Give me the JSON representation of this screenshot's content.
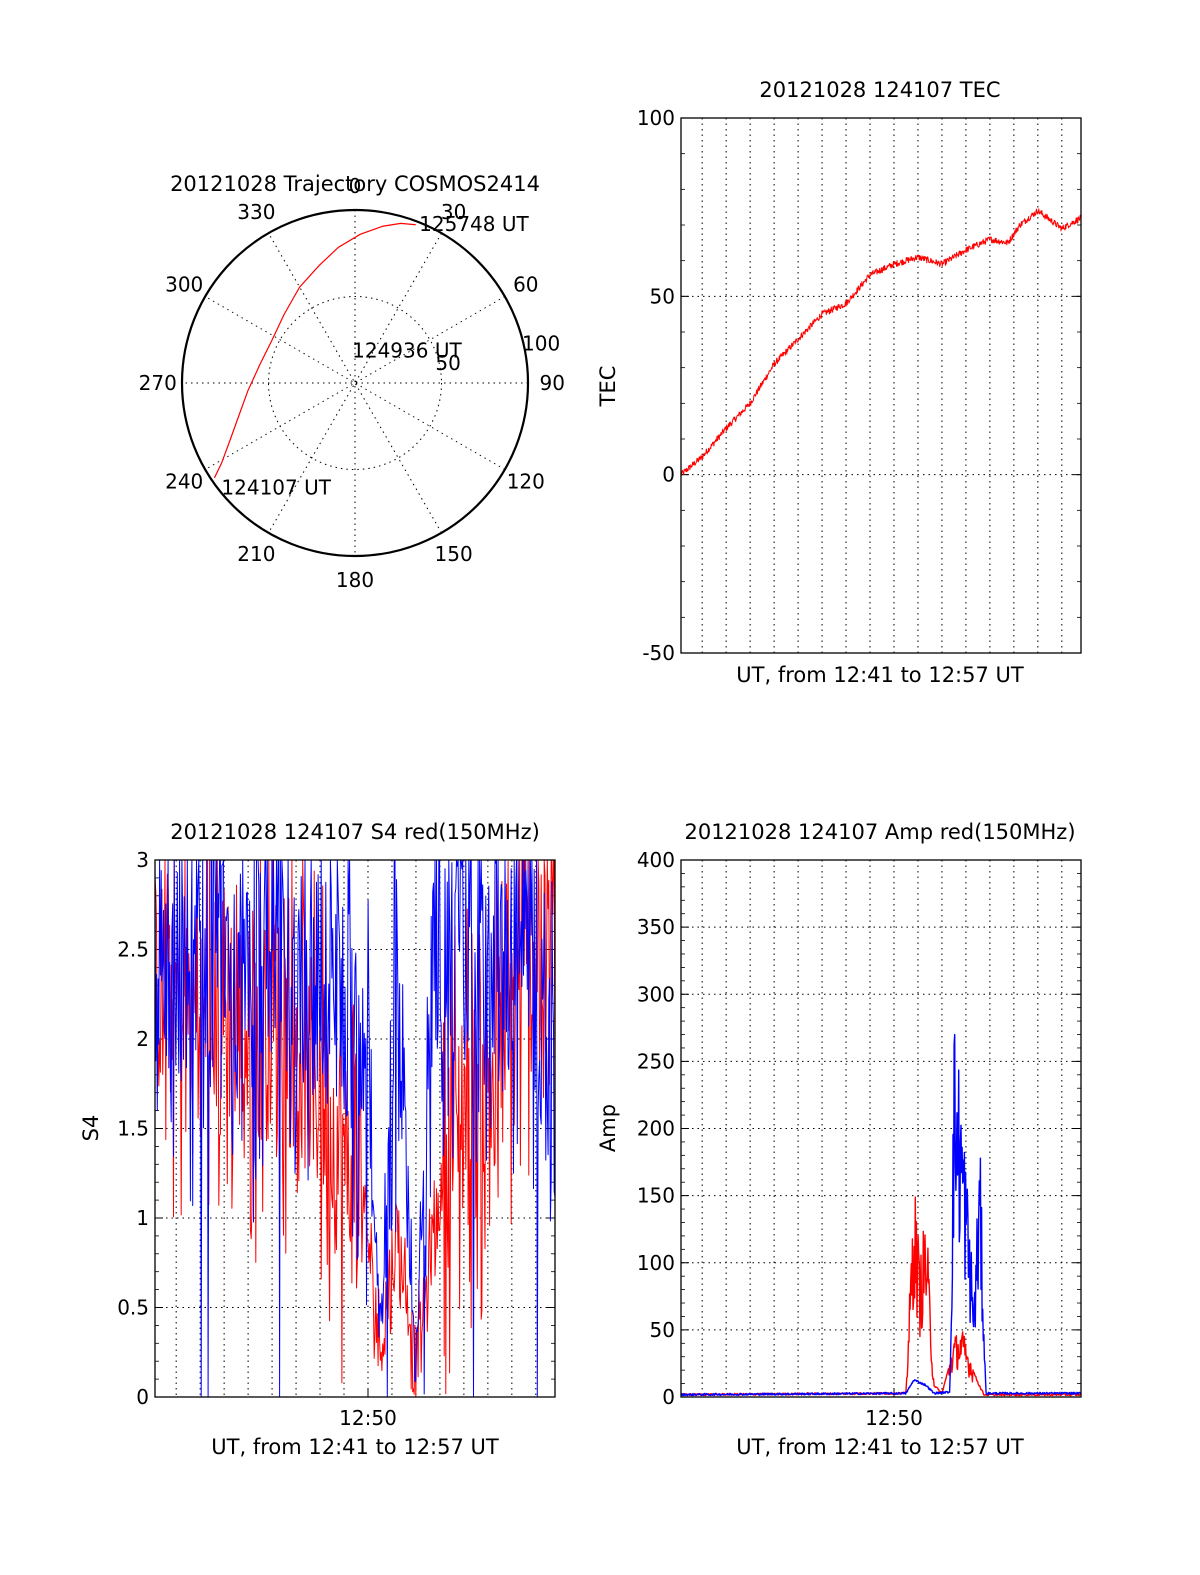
{
  "chart_data": [
    {
      "id": "trajectory",
      "type": "polar",
      "title": "20121028 Trajectory COSMOS2414",
      "azimuth_ticks": [
        {
          "angle": 0,
          "label": "0"
        },
        {
          "angle": 30,
          "label": "30"
        },
        {
          "angle": 60,
          "label": "60"
        },
        {
          "angle": 90,
          "label": "90"
        },
        {
          "angle": 120,
          "label": "120"
        },
        {
          "angle": 150,
          "label": "150"
        },
        {
          "angle": 180,
          "label": "180"
        },
        {
          "angle": 210,
          "label": "210"
        },
        {
          "angle": 240,
          "label": "240"
        },
        {
          "angle": 270,
          "label": "270"
        },
        {
          "angle": 300,
          "label": "300"
        },
        {
          "angle": 330,
          "label": "330"
        }
      ],
      "radial_ticks": [
        {
          "value": 50,
          "label": "50"
        },
        {
          "value": 100,
          "label": "100"
        }
      ],
      "rlim": [
        0,
        100
      ],
      "grid": true,
      "series": [
        {
          "color": "#ff0000",
          "points": [
            [
              236,
              98
            ],
            [
              239,
              90
            ],
            [
              245,
              80
            ],
            [
              254,
              70
            ],
            [
              266,
              62
            ],
            [
              281,
              56
            ],
            [
              297,
              54
            ],
            [
              314,
              57
            ],
            [
              330,
              64
            ],
            [
              343,
              71
            ],
            [
              353,
              79
            ],
            [
              2,
              86
            ],
            [
              10,
              92
            ],
            [
              16,
              96
            ],
            [
              21,
              98
            ]
          ]
        }
      ],
      "annotations": [
        {
          "text": "125748 UT",
          "at": [
            22,
            99
          ]
        },
        {
          "text": "124936 UT",
          "at": [
            355,
            19
          ]
        },
        {
          "text": "124107 UT",
          "at": [
            232,
            98
          ]
        }
      ]
    },
    {
      "id": "tec",
      "type": "line",
      "title": "20121028 124107 TEC",
      "xlabel": "UT, from 12:41 to 12:57 UT",
      "ylabel": "TEC",
      "xlim": [
        "12:41:07",
        "12:57:48"
      ],
      "ylim": [
        -50,
        100
      ],
      "yticks": [
        -50,
        0,
        50,
        100
      ],
      "xtick_labels": [],
      "grid": true,
      "series": [
        {
          "color": "#ff0000",
          "x": [
            "12:41:07",
            "12:42:00",
            "12:43:00",
            "12:44:00",
            "12:45:00",
            "12:46:00",
            "12:47:00",
            "12:48:00",
            "12:49:00",
            "12:50:00",
            "12:51:00",
            "12:52:00",
            "12:53:00",
            "12:54:00",
            "12:54:45",
            "12:55:15",
            "12:56:00",
            "12:57:00",
            "12:57:48"
          ],
          "values": [
            0,
            5,
            13,
            20,
            31,
            38,
            45,
            48,
            56,
            59,
            61,
            59,
            63,
            66,
            65,
            70,
            74,
            69,
            72
          ]
        }
      ]
    },
    {
      "id": "s4",
      "type": "line",
      "title": "20121028 124107 S4 red(150MHz)",
      "xlabel": "UT, from 12:41 to 12:57 UT",
      "ylabel": "S4",
      "xlim": [
        "12:41:07",
        "12:57:48"
      ],
      "ylim": [
        0,
        3
      ],
      "yticks": [
        0,
        0.5,
        1,
        1.5,
        2,
        2.5,
        3
      ],
      "ytick_labels": [
        "0",
        "0.5",
        "1",
        "1.5",
        "2",
        "2.5",
        "3"
      ],
      "xtick_labels": [
        "12:50"
      ],
      "grid": true,
      "series": [
        {
          "color": "#ff0000",
          "x": [
            "12:41:07",
            "12:42:00",
            "12:43:00",
            "12:44:00",
            "12:45:00",
            "12:46:00",
            "12:47:00",
            "12:48:00",
            "12:49:00",
            "12:49:45",
            "12:50:30",
            "12:51:15",
            "12:52:00",
            "12:52:45",
            "12:53:30",
            "12:54:30",
            "12:55:30",
            "12:56:30",
            "12:57:48"
          ],
          "values": [
            2.3,
            2.2,
            2.1,
            2.2,
            2.0,
            2.1,
            2.0,
            1.7,
            1.3,
            1.2,
            0.25,
            0.9,
            0.2,
            0.9,
            1.5,
            1.6,
            1.9,
            2.4,
            2.6
          ]
        },
        {
          "color": "#0000ff",
          "x": [
            "12:41:07",
            "12:42:00",
            "12:43:00",
            "12:44:00",
            "12:45:00",
            "12:46:00",
            "12:47:00",
            "12:48:00",
            "12:49:00",
            "12:49:45",
            "12:50:30",
            "12:51:15",
            "12:52:00",
            "12:52:45",
            "12:53:30",
            "12:54:30",
            "12:55:30",
            "12:56:30",
            "12:57:48"
          ],
          "values": [
            2.5,
            2.3,
            2.4,
            2.6,
            2.2,
            2.5,
            2.4,
            2.3,
            2.2,
            2.0,
            0.45,
            2.2,
            0.15,
            2.6,
            2.4,
            2.5,
            2.2,
            2.6,
            1.7
          ]
        }
      ]
    },
    {
      "id": "amp",
      "type": "line",
      "title": "20121028 124107 Amp red(150MHz)",
      "xlabel": "UT, from 12:41 to 12:57 UT",
      "ylabel": "Amp",
      "xlim": [
        "12:41:07",
        "12:57:48"
      ],
      "ylim": [
        0,
        400
      ],
      "yticks": [
        0,
        50,
        100,
        150,
        200,
        250,
        300,
        350,
        400
      ],
      "xtick_labels": [
        "12:50"
      ],
      "grid": true,
      "series": [
        {
          "color": "#ff0000",
          "x": [
            "12:41:07",
            "12:50:30",
            "12:50:50",
            "12:51:05",
            "12:51:20",
            "12:51:40",
            "12:52:00",
            "12:52:30",
            "12:52:50",
            "12:53:10",
            "12:53:30",
            "12:53:45",
            "12:57:48"
          ],
          "values": [
            1,
            2,
            130,
            80,
            110,
            8,
            2,
            35,
            40,
            25,
            10,
            1,
            1
          ]
        },
        {
          "color": "#0000ff",
          "x": [
            "12:41:07",
            "12:50:30",
            "12:50:50",
            "12:51:20",
            "12:51:40",
            "12:52:20",
            "12:52:30",
            "12:52:50",
            "12:53:10",
            "12:53:20",
            "12:53:35",
            "12:53:50",
            "12:57:48"
          ],
          "values": [
            1,
            2,
            12,
            8,
            2,
            3,
            220,
            180,
            100,
            60,
            150,
            2,
            2
          ]
        }
      ]
    }
  ]
}
